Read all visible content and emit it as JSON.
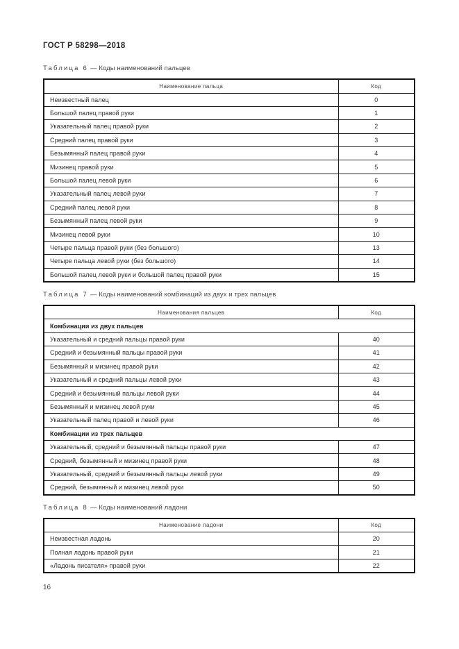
{
  "page": {
    "doc_code": "ГОСТ Р 58298—2018",
    "page_number": "16"
  },
  "tables": [
    {
      "caption_label": "Таблица 6",
      "caption_text": "— Коды наименований пальцев",
      "columns": {
        "name": "Наименование пальца",
        "code": "Код"
      },
      "rows": [
        {
          "name": "Неизвестный палец",
          "code": "0"
        },
        {
          "name": "Большой палец правой руки",
          "code": "1"
        },
        {
          "name": "Указательный палец правой руки",
          "code": "2"
        },
        {
          "name": "Средний палец правой руки",
          "code": "3"
        },
        {
          "name": "Безымянный палец правой руки",
          "code": "4"
        },
        {
          "name": "Мизинец правой руки",
          "code": "5"
        },
        {
          "name": "Большой палец левой руки",
          "code": "6"
        },
        {
          "name": "Указательный палец левой руки",
          "code": "7"
        },
        {
          "name": "Средний палец левой руки",
          "code": "8"
        },
        {
          "name": "Безымянный палец левой руки",
          "code": "9"
        },
        {
          "name": "Мизинец левой руки",
          "code": "10"
        },
        {
          "name": "Четыре пальца правой руки (без большого)",
          "code": "13"
        },
        {
          "name": "Четыре пальца левой руки (без большого)",
          "code": "14"
        },
        {
          "name": "Большой палец левой руки и большой палец правой руки",
          "code": "15"
        }
      ]
    },
    {
      "caption_label": "Таблица 7",
      "caption_text": "— Коды наименований комбинаций из двух и трех пальцев",
      "columns": {
        "name": "Наименования пальцев",
        "code": "Код"
      },
      "rows": [
        {
          "section": "Комбинации из двух пальцев"
        },
        {
          "name": "Указательный и средний пальцы правой руки",
          "code": "40"
        },
        {
          "name": "Средний и безымянный пальцы правой руки",
          "code": "41"
        },
        {
          "name": "Безымянный и мизинец правой руки",
          "code": "42"
        },
        {
          "name": "Указательный и средний пальцы левой руки",
          "code": "43"
        },
        {
          "name": "Средний и безымянный пальцы левой руки",
          "code": "44"
        },
        {
          "name": "Безымянный и мизинец левой руки",
          "code": "45"
        },
        {
          "name": "Указательный палец правой и левой руки",
          "code": "46"
        },
        {
          "section": "Комбинации из трех пальцев"
        },
        {
          "name": "Указательный, средний и безымянный пальцы правой руки",
          "code": "47"
        },
        {
          "name": "Средний, безымянный и мизинец правой руки",
          "code": "48"
        },
        {
          "name": "Указательный, средний и безымянный пальцы левой руки",
          "code": "49"
        },
        {
          "name": "Средний, безымянный и мизинец левой руки",
          "code": "50"
        }
      ]
    },
    {
      "caption_label": "Таблица 8",
      "caption_text": "— Коды наименований ладони",
      "columns": {
        "name": "Наименование ладони",
        "code": "Код"
      },
      "rows": [
        {
          "name": "Неизвестная ладонь",
          "code": "20"
        },
        {
          "name": "Полная ладонь правой руки",
          "code": "21"
        },
        {
          "name": "«Ладонь писателя» правой руки",
          "code": "22"
        }
      ]
    }
  ]
}
